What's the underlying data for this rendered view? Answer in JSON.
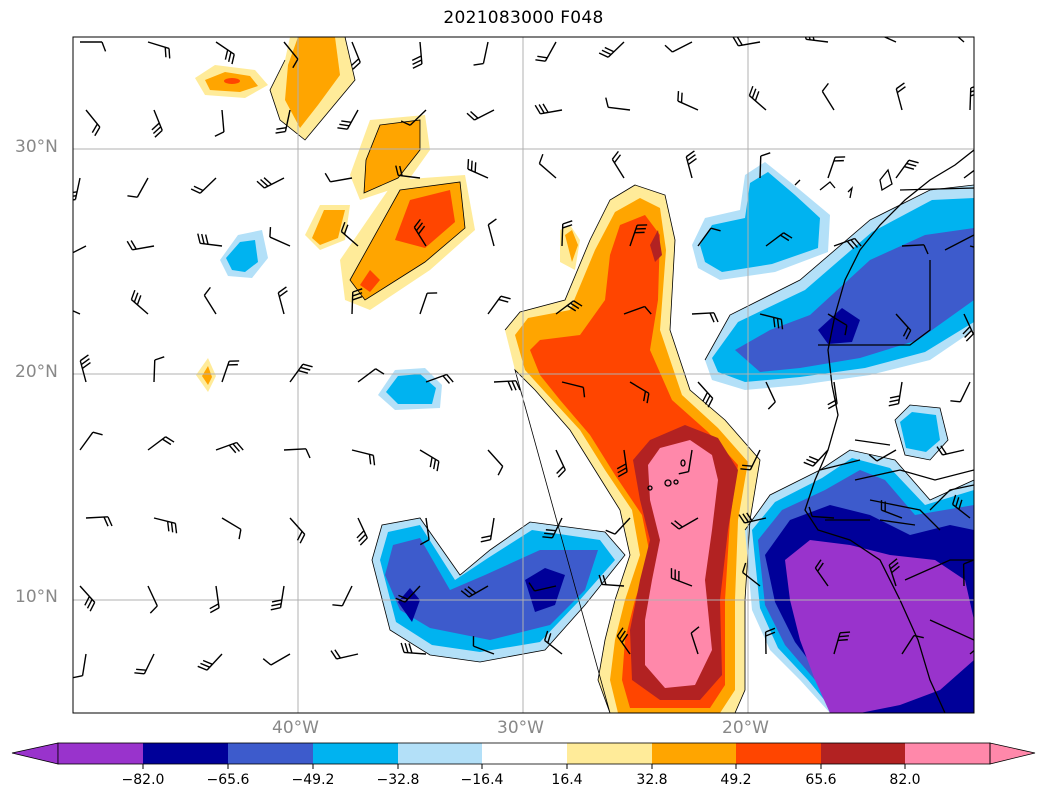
{
  "title": "2021083000 F048",
  "map": {
    "lon_range": [
      -50,
      -10
    ],
    "lat_range": [
      5,
      35
    ],
    "lat_ticks": [
      {
        "value": 30,
        "label": "30°N"
      },
      {
        "value": 20,
        "label": "20°N"
      },
      {
        "value": 10,
        "label": "10°N"
      }
    ],
    "lon_ticks": [
      {
        "value": -40,
        "label": "40°W"
      },
      {
        "value": -30,
        "label": "30°W"
      },
      {
        "value": -20,
        "label": "20°W"
      }
    ],
    "grid": true,
    "overlay": "wind barbs"
  },
  "colorbar": {
    "levels": [
      "−82.0",
      "−65.6",
      "−49.2",
      "−32.8",
      "−16.4",
      "16.4",
      "32.8",
      "49.2",
      "65.6",
      "82.0"
    ],
    "colors": [
      "#9933cc",
      "#000099",
      "#3d5bcc",
      "#00b3f0",
      "#b3e0f8",
      "#ffffff",
      "#ffeb99",
      "#ffa500",
      "#ff4500",
      "#b22222",
      "#ff88aa"
    ],
    "extend": "both"
  }
}
